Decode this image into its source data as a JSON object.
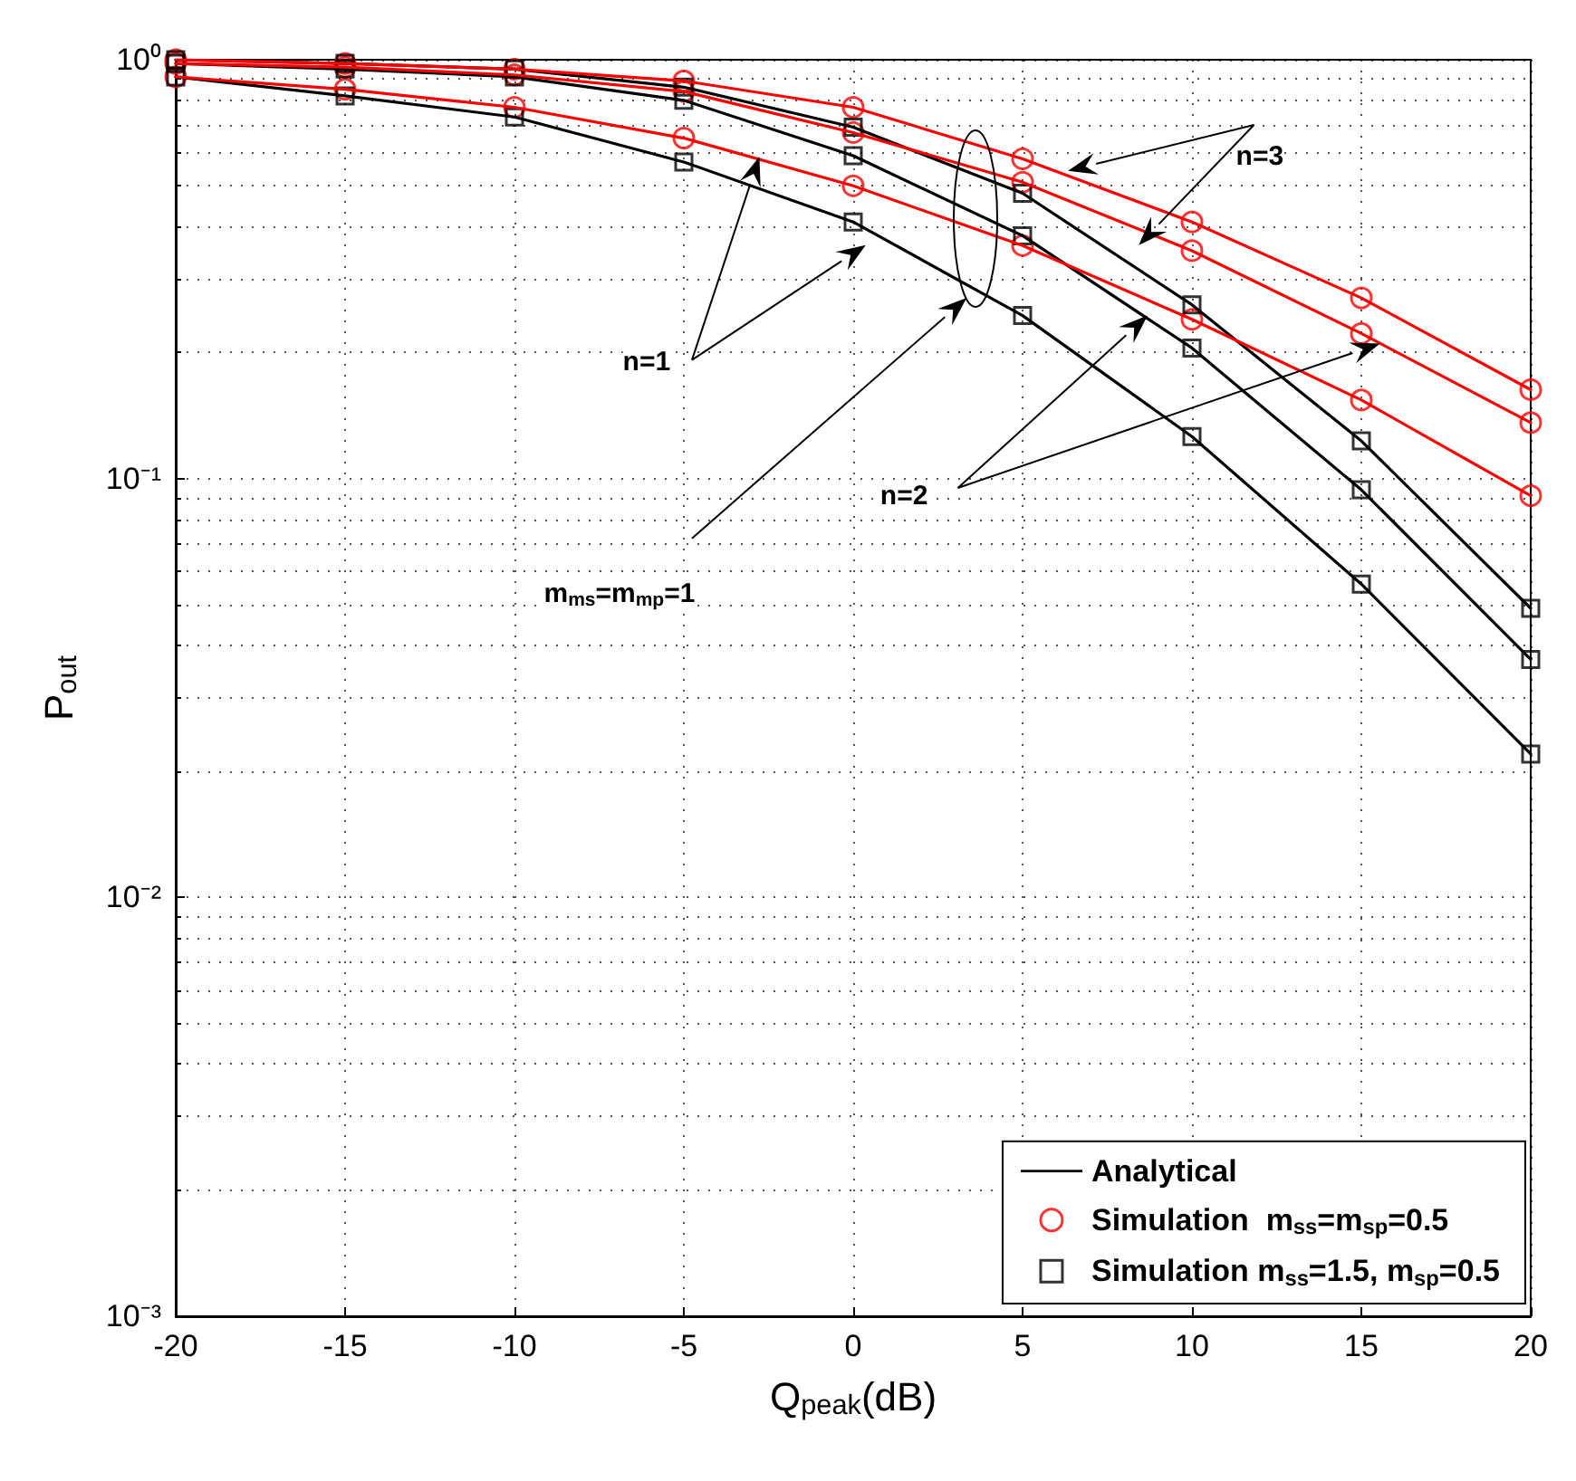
{
  "chart_data": {
    "type": "line",
    "xlabel": "Q$_{peak}$(dB)",
    "ylabel": "P$_{out}$",
    "x": [
      -20,
      -15,
      -10,
      -5,
      0,
      5,
      10,
      15,
      20
    ],
    "log": "y",
    "grid": true,
    "legend": "bottom right",
    "line_style": "solid",
    "xlim": [
      -20,
      20
    ],
    "xticks": [
      -20,
      -15,
      -10,
      -5,
      0,
      5,
      10,
      15,
      20
    ],
    "ylim": [
      0.001,
      1
    ],
    "yticks": [
      {
        "value": 0.001,
        "label": "10⁻³"
      },
      {
        "value": 0.01,
        "label": "10⁻²"
      },
      {
        "value": 0.1,
        "label": "10⁻¹"
      },
      {
        "value": 1,
        "label": "10⁰"
      }
    ],
    "series": [
      {
        "type": "line",
        "marker": "none",
        "name": "Analytical",
        "color": "#000000",
        "values": [
          1.0,
          0.98,
          0.95,
          0.86,
          0.69,
          0.48,
          0.26,
          0.123,
          0.049
        ]
      },
      {
        "type": "line",
        "marker": "none",
        "color": "#000000",
        "values": [
          0.98,
          0.95,
          0.91,
          0.8,
          0.59,
          0.38,
          0.205,
          0.094,
          0.037
        ]
      },
      {
        "type": "line",
        "marker": "none",
        "color": "#000000",
        "values": [
          0.91,
          0.82,
          0.73,
          0.57,
          0.41,
          0.245,
          0.126,
          0.056,
          0.022
        ]
      },
      {
        "type": "line",
        "marker": "none",
        "color": "#ff0000",
        "values": [
          1.0,
          0.98,
          0.95,
          0.89,
          0.77,
          0.58,
          0.41,
          0.27,
          0.163
        ]
      },
      {
        "type": "line",
        "marker": "none",
        "color": "#ff0000",
        "values": [
          0.98,
          0.96,
          0.92,
          0.84,
          0.67,
          0.51,
          0.35,
          0.222,
          0.136
        ]
      },
      {
        "type": "line",
        "marker": "none",
        "color": "#ff0000",
        "values": [
          0.91,
          0.85,
          0.77,
          0.65,
          0.5,
          0.36,
          0.24,
          0.154,
          0.091
        ]
      },
      {
        "type": "scatter",
        "marker": "circle",
        "name": "Simulation  m$_{ss}$=m$_{sp}$=0.5",
        "color": "#ff0000",
        "values": [
          1.0,
          0.98,
          0.95,
          0.89,
          0.77,
          0.58,
          0.41,
          0.27,
          0.163
        ]
      },
      {
        "type": "scatter",
        "marker": "circle",
        "color": "#ff0000",
        "values": [
          0.98,
          0.96,
          0.92,
          0.84,
          0.67,
          0.51,
          0.35,
          0.222,
          0.136
        ]
      },
      {
        "type": "scatter",
        "marker": "circle",
        "color": "#ff0000",
        "values": [
          0.91,
          0.85,
          0.77,
          0.65,
          0.5,
          0.36,
          0.24,
          0.154,
          0.091
        ]
      },
      {
        "type": "scatter",
        "marker": "square",
        "name": "Simulation m$_{ss}$=1.5, m$_{sp}$=0.5",
        "color": "#000000",
        "values": [
          1.0,
          0.98,
          0.95,
          0.86,
          0.69,
          0.48,
          0.26,
          0.123,
          0.049
        ]
      },
      {
        "type": "scatter",
        "marker": "square",
        "color": "#000000",
        "values": [
          0.98,
          0.95,
          0.91,
          0.8,
          0.59,
          0.38,
          0.205,
          0.094,
          0.037
        ]
      },
      {
        "type": "scatter",
        "marker": "square",
        "color": "#000000",
        "values": [
          0.91,
          0.82,
          0.73,
          0.57,
          0.41,
          0.245,
          0.126,
          0.056,
          0.022
        ]
      }
    ],
    "annotations": [
      {
        "text": "n=3",
        "x": 12.0,
        "y": 0.586
      },
      {
        "text": "n=2",
        "x": 1.5,
        "y": 0.091
      },
      {
        "text": "n=1",
        "x": -6.1,
        "y": 0.19
      },
      "m$_{ms}$=m$_{mp}$=1"
    ]
  }
}
